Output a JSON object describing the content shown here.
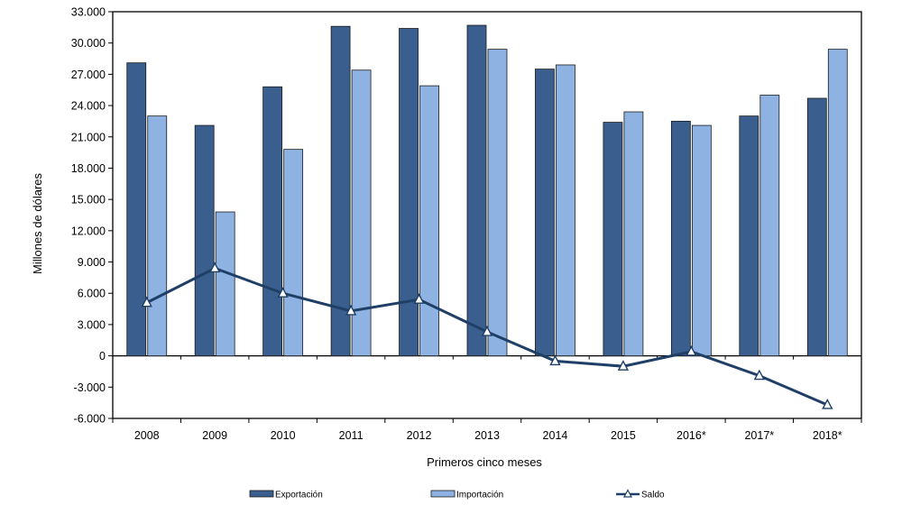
{
  "chart_data": {
    "type": "bar",
    "title": "",
    "xlabel": "Primeros cinco meses",
    "ylabel": "Millones de dólares",
    "categories": [
      "2008",
      "2009",
      "2010",
      "2011",
      "2012",
      "2013",
      "2014",
      "2015",
      "2016*",
      "2017*",
      "2018*"
    ],
    "ylim": [
      -6000,
      33000
    ],
    "yticks": [
      33000,
      30000,
      27000,
      24000,
      21000,
      18000,
      15000,
      12000,
      9000,
      6000,
      3000,
      0,
      -3000,
      -6000
    ],
    "ytick_labels": [
      "33.000",
      "30.000",
      "27.000",
      "24.000",
      "21.000",
      "18.000",
      "15.000",
      "12.000",
      "9.000",
      "6.000",
      "3.000",
      "0",
      "-3.000",
      "-6.000"
    ],
    "grid": false,
    "legend_position": "bottom",
    "series": [
      {
        "name": "Exportación",
        "kind": "bar",
        "color": "#3a5f8f",
        "values": [
          28100,
          22100,
          25800,
          31600,
          31400,
          31700,
          27500,
          22400,
          22500,
          23000,
          24700
        ]
      },
      {
        "name": "Importación",
        "kind": "bar",
        "color": "#8eb3e3",
        "values": [
          23000,
          13800,
          19800,
          27400,
          25900,
          29400,
          27900,
          23400,
          22100,
          25000,
          29400
        ]
      },
      {
        "name": "Saldo",
        "kind": "line",
        "marker": "triangle",
        "color": "#1f3f66",
        "values": [
          5100,
          8400,
          6000,
          4300,
          5400,
          2300,
          -500,
          -1000,
          400,
          -1900,
          -4700
        ]
      }
    ]
  }
}
